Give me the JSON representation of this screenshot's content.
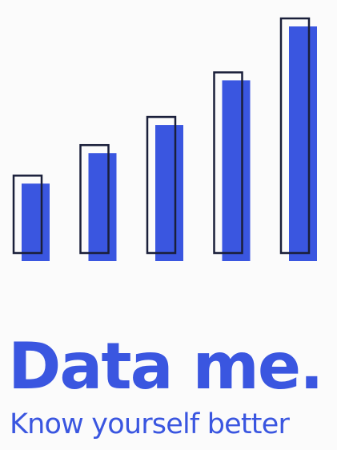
{
  "brand": {
    "name": "Data me.",
    "tagline": "Know yourself better"
  },
  "logo": {
    "icon": "rising-bar-chart-logo",
    "bar_levels": [
      0.33,
      0.46,
      0.58,
      0.77,
      1.0
    ],
    "colors": {
      "fill": "#3a56e0",
      "outline": "#1a1f3a",
      "text": "#3a56e0",
      "background": "#fbfbfb"
    }
  }
}
